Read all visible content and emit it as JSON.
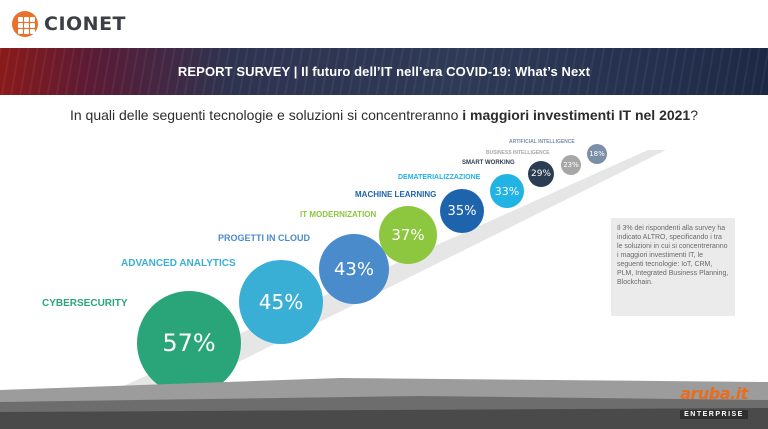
{
  "brand": {
    "name": "CIONET",
    "color": "#e8722c"
  },
  "banner": {
    "title": "REPORT SURVEY  | Il futuro dell’IT nell’era COVID-19: What’s Next"
  },
  "question": {
    "prefix": "In quali delle seguenti tecnologie e soluzioni si concentreranno ",
    "bold": "i maggiori investimenti IT nel 2021",
    "suffix": "?"
  },
  "chart_data": {
    "type": "bubble",
    "unit": "%",
    "categories": [
      "CYBERSECURITY",
      "ADVANCED ANALYTICS",
      "PROGETTI IN CLOUD",
      "IT MODERNIZATION",
      "MACHINE LEARNING",
      "DEMATERIALIZZAZIONE",
      "SMART WORKING",
      "BUSINESS INTELLIGENCE",
      "ARTIFICIAL INTELLIGENCE"
    ],
    "values": [
      57,
      45,
      43,
      37,
      35,
      33,
      29,
      23,
      18
    ],
    "labels": [
      "57%",
      "45%",
      "43%",
      "37%",
      "35%",
      "33%",
      "29%",
      "23%",
      "18%"
    ],
    "colors": [
      "#2aa579",
      "#3aafd6",
      "#4a8bcc",
      "#8dc63f",
      "#1e64ad",
      "#20b3e4",
      "#2b3d52",
      "#a7a7a7",
      "#7b8fa8"
    ]
  },
  "note": {
    "text": "Il 3% dei rispondenti alla survey ha indicato ALTRO, specificando i tra le soluzioni in cui si concentreranno i maggiori investimenti IT, le seguenti tecnologie: IoT, CRM, PLM, Integrated Business Planning, Blockchain."
  },
  "sponsor": {
    "name": "aruba.it",
    "tag": "ENTERPRISE",
    "color": "#e86d1f"
  }
}
